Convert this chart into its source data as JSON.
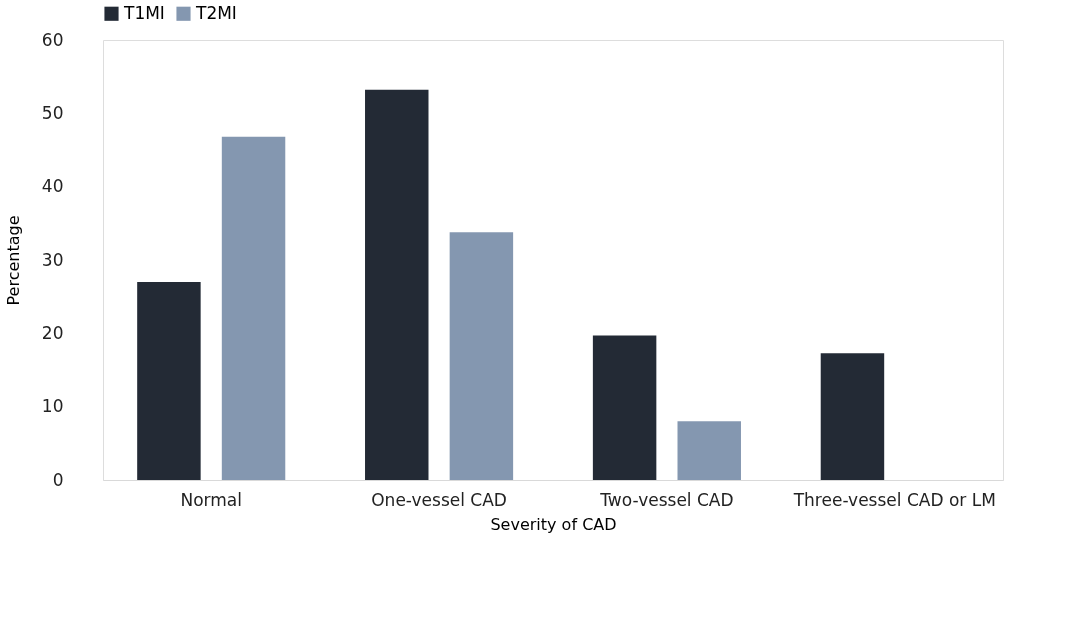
{
  "chart_data": {
    "type": "bar",
    "xlabel": "Severity of CAD",
    "ylabel": "Percentage",
    "categories": [
      "Normal",
      "One-vessel CAD",
      "Two-vessel CAD",
      "Three-vessel CAD or LM"
    ],
    "series": [
      {
        "name": "T1MI",
        "color": "#232a35",
        "values": [
          27,
          53.2,
          19.7,
          17.3
        ]
      },
      {
        "name": "T2MI",
        "color": "#8497b0",
        "values": [
          46.8,
          33.8,
          8.0,
          0
        ]
      }
    ],
    "ylim": [
      0,
      60
    ],
    "yticks": [
      0,
      10,
      20,
      30,
      40,
      50,
      60
    ],
    "grid": false,
    "legend": "top"
  }
}
